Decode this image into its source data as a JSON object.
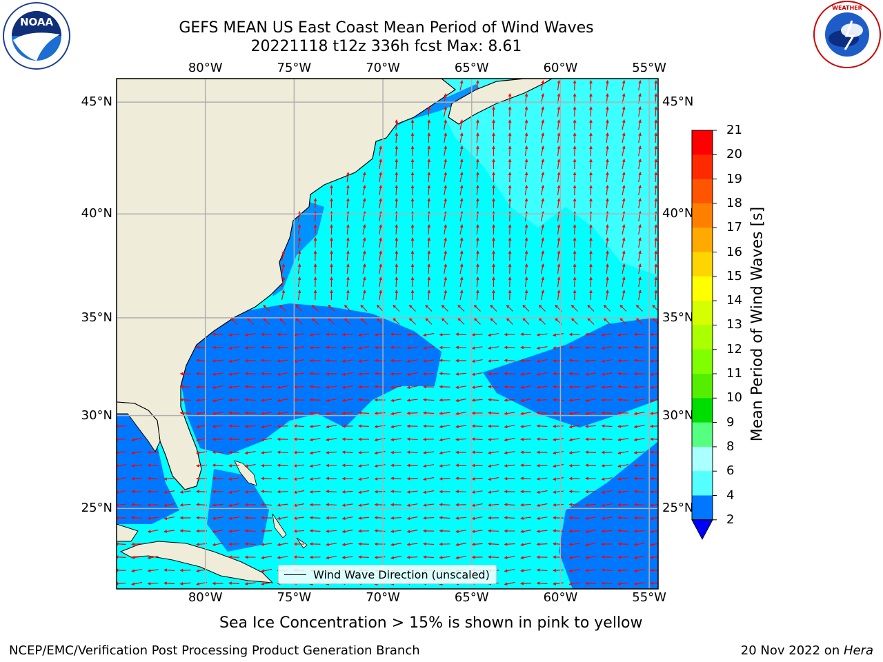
{
  "header": {
    "title_line1": "GEFS MEAN US East Coast Mean Period of Wind Waves",
    "title_line2": "20221118 t12z 336h fcst   Max: 8.61"
  },
  "logos": {
    "left": {
      "text": "NOAA",
      "icon": "noaa-logo",
      "ring_text": "NATIONAL OCEANIC AND ATMOSPHERIC ADMINISTRATION · U.S. DEPARTMENT OF COMMERCE"
    },
    "right": {
      "text": "NATIONAL WEATHER SERVICE",
      "icon": "nws-logo"
    }
  },
  "map": {
    "lat_labels": [
      "45°N",
      "40°N",
      "35°N",
      "30°N",
      "25°N"
    ],
    "lat_values": [
      45,
      40,
      35,
      30,
      25
    ],
    "lon_labels": [
      "80°W",
      "75°W",
      "70°W",
      "65°W",
      "60°W",
      "55°W"
    ],
    "lon_values": [
      -80,
      -75,
      -70,
      -65,
      -60,
      -55
    ],
    "extent": {
      "lon": [
        -85,
        -54.5
      ],
      "lat": [
        20.5,
        46
      ]
    },
    "colors": {
      "land": "#efedda",
      "coast": "#000000",
      "grid": "#b0b0b0",
      "arrow": "#ff0000"
    },
    "arrow_field": "mostly northward arrows north of ~34N, westward arrows south of ~34N"
  },
  "legend": {
    "label": "Wind Wave Direction (unscaled)"
  },
  "colorbar": {
    "label": "Mean Period of Wind Waves [s]",
    "ticks": [
      "21",
      "20",
      "19",
      "18",
      "17",
      "16",
      "15",
      "14",
      "13",
      "12",
      "11",
      "10",
      "9",
      "8",
      "6",
      "4",
      "2"
    ],
    "colors": [
      "#ff0000",
      "#ff2a00",
      "#ff5500",
      "#ff8000",
      "#ffaa00",
      "#ffd500",
      "#ffff00",
      "#d5ff00",
      "#aaff00",
      "#80ff00",
      "#55ee00",
      "#00dd00",
      "#55ff80",
      "#aaffff",
      "#55ffff",
      "#00ffff",
      "#0077ff"
    ],
    "under_color": "#0000ff"
  },
  "note": "Sea Ice Concentration > 15% is shown in pink to yellow",
  "footer": {
    "left": "NCEP/EMC/Verification Post Processing Product Generation Branch",
    "right_date": "20 Nov 2022 on ",
    "right_host": "Hera"
  }
}
